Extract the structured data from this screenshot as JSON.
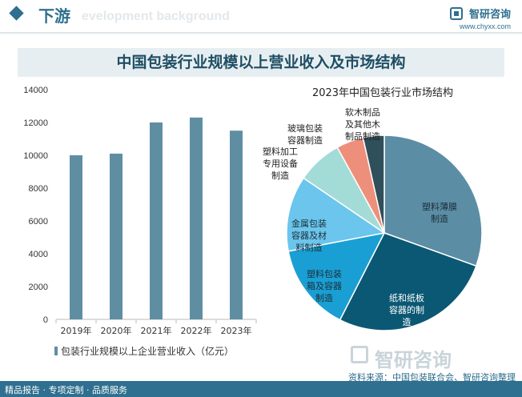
{
  "header": {
    "section_title": "下游",
    "section_bg": "evelopment background",
    "brand_name": "智研咨询",
    "brand_url": "www.chyxx.com"
  },
  "chart_title": "中国包装行业规模以上营业收入及市场结构",
  "watermark": "智研咨询",
  "footer": {
    "left": "精品报告 · 专项定制 · 品质服务",
    "source": "资料来源：中国包装联合会、智研咨询整理"
  },
  "colors": {
    "bar": "#5f8ea3",
    "accent": "#2f6f8f"
  },
  "chart_data": [
    {
      "type": "bar",
      "categories": [
        "2019年",
        "2020年",
        "2021年",
        "2022年",
        "2023年"
      ],
      "series": [
        {
          "name": "包装行业规模以上企业营业收入（亿元）",
          "values": [
            10000,
            10100,
            12000,
            12300,
            11500
          ]
        }
      ],
      "ylim": [
        0,
        14000
      ],
      "yticks": [
        "0",
        "2000",
        "4000",
        "6000",
        "8000",
        "10000",
        "12000",
        "14000"
      ],
      "grid": false,
      "legend": "bottom"
    },
    {
      "type": "pie",
      "title": "2023年中国包装行业市场结构",
      "slices": [
        {
          "label": "塑料薄膜制造",
          "value": 30.5,
          "color": "#5b8ea5"
        },
        {
          "label": "纸和纸板容器的制造",
          "value": 27.0,
          "color": "#0b5874"
        },
        {
          "label": "塑料包装箱及容器制造",
          "value": 14.5,
          "color": "#1a9fd4"
        },
        {
          "label": "金属包装容器及材料制造",
          "value": 12.5,
          "color": "#6bc5ec"
        },
        {
          "label": "塑料加工专用设备制造",
          "value": 7.5,
          "color": "#a3dbd7"
        },
        {
          "label": "玻璃包装容器制造",
          "value": 4.5,
          "color": "#ee8f7c"
        },
        {
          "label": "软木制品及其他木制品制造",
          "value": 3.5,
          "color": "#2f4f5a"
        }
      ]
    }
  ]
}
